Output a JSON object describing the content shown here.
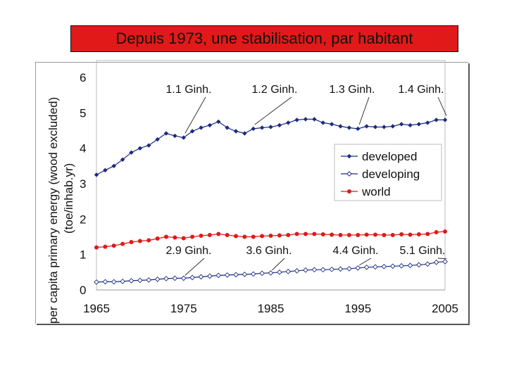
{
  "title": "Depuis 1973, une stabilisation, par habitant",
  "chart_data": {
    "type": "line",
    "title": "Depuis 1973, une stabilisation, par habitant",
    "ylabel_line1": "per capita primary energy (wood excluded)",
    "ylabel_line2": "(toe/inhab.yr)",
    "xlabel": "",
    "xlim": [
      1965,
      2005
    ],
    "ylim": [
      0,
      6
    ],
    "x_ticks": [
      "1965",
      "1975",
      "1985",
      "1995",
      "2005"
    ],
    "y_ticks": [
      "0",
      "1",
      "2",
      "3",
      "4",
      "5",
      "6"
    ],
    "x": [
      1965,
      1966,
      1967,
      1968,
      1969,
      1970,
      1971,
      1972,
      1973,
      1974,
      1975,
      1976,
      1977,
      1978,
      1979,
      1980,
      1981,
      1982,
      1983,
      1984,
      1985,
      1986,
      1987,
      1988,
      1989,
      1990,
      1991,
      1992,
      1993,
      1994,
      1995,
      1996,
      1997,
      1998,
      1999,
      2000,
      2001,
      2002,
      2003,
      2004,
      2005
    ],
    "series": [
      {
        "name": "developed",
        "color": "#1a2a80",
        "marker": "diamond-filled",
        "values": [
          3.25,
          3.38,
          3.5,
          3.68,
          3.88,
          4.0,
          4.08,
          4.25,
          4.42,
          4.35,
          4.3,
          4.48,
          4.58,
          4.65,
          4.75,
          4.58,
          4.48,
          4.42,
          4.55,
          4.58,
          4.6,
          4.65,
          4.72,
          4.8,
          4.82,
          4.82,
          4.72,
          4.68,
          4.62,
          4.58,
          4.55,
          4.62,
          4.6,
          4.6,
          4.62,
          4.68,
          4.65,
          4.68,
          4.72,
          4.8,
          4.8
        ]
      },
      {
        "name": "developing",
        "color": "#1a2a80",
        "marker": "diamond-open",
        "values": [
          0.22,
          0.23,
          0.23,
          0.24,
          0.26,
          0.27,
          0.28,
          0.3,
          0.32,
          0.33,
          0.33,
          0.35,
          0.37,
          0.39,
          0.41,
          0.42,
          0.43,
          0.44,
          0.45,
          0.47,
          0.48,
          0.5,
          0.52,
          0.54,
          0.56,
          0.57,
          0.57,
          0.58,
          0.59,
          0.6,
          0.62,
          0.64,
          0.65,
          0.66,
          0.67,
          0.68,
          0.69,
          0.71,
          0.73,
          0.78,
          0.8
        ]
      },
      {
        "name": "world",
        "color": "#e11919",
        "marker": "circle-filled",
        "values": [
          1.2,
          1.22,
          1.25,
          1.3,
          1.35,
          1.38,
          1.4,
          1.45,
          1.5,
          1.48,
          1.46,
          1.5,
          1.53,
          1.55,
          1.58,
          1.55,
          1.52,
          1.5,
          1.5,
          1.52,
          1.53,
          1.54,
          1.55,
          1.58,
          1.58,
          1.58,
          1.57,
          1.56,
          1.55,
          1.55,
          1.55,
          1.56,
          1.56,
          1.55,
          1.55,
          1.57,
          1.56,
          1.57,
          1.58,
          1.63,
          1.65
        ]
      }
    ],
    "annotations_top": [
      {
        "text": "1.1 Ginh.",
        "year": 1975,
        "series": "developed"
      },
      {
        "text": "1.2 Ginh.",
        "year": 1983,
        "series": "developed"
      },
      {
        "text": "1.3 Ginh.",
        "year": 1995,
        "series": "developed"
      },
      {
        "text": "1.4 Ginh.",
        "year": 2005,
        "series": "developed"
      }
    ],
    "annotations_bottom": [
      {
        "text": "2.9 Ginh.",
        "year": 1975,
        "series": "developing"
      },
      {
        "text": "3.6 Ginh.",
        "year": 1985,
        "series": "developing"
      },
      {
        "text": "4.4 Ginh.",
        "year": 1995,
        "series": "developing"
      },
      {
        "text": "5.1 Ginh.",
        "year": 2005,
        "series": "developing"
      }
    ],
    "legend_position": "right"
  }
}
